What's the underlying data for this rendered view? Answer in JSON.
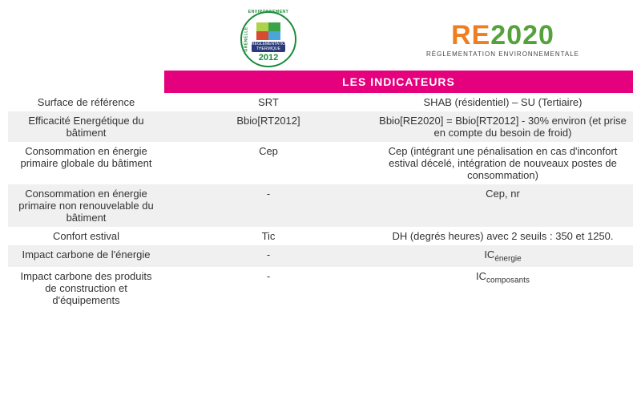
{
  "banner": "LES INDICATEURS",
  "logos": {
    "grenelle": {
      "top_text": "ENVIRONNEMENT",
      "left_text": "GRENELLE",
      "band_line1": "RÉGLEMENTATION",
      "band_line2": "THERMIQUE",
      "year": "2012"
    },
    "re2020": {
      "re": "RE",
      "year": "2020",
      "subtitle": "RÉGLEMENTATION ENVIRONNEMENTALE"
    }
  },
  "columns": {
    "label_width": 195,
    "rt2012_width": 260,
    "re2020_width": 325
  },
  "colors": {
    "banner_bg": "#e5007d",
    "banner_fg": "#ffffff",
    "row_even": "#f0f0f0",
    "row_odd": "#ffffff",
    "re_orange": "#f07d1f",
    "re_green": "#56a23a",
    "grenelle_green": "#1a8b3a"
  },
  "rows": [
    {
      "label": "Surface de référence",
      "rt2012": "SRT",
      "re2020": "SHAB (résidentiel) – SU (Tertiaire)"
    },
    {
      "label": "Efficacité Energétique du bâtiment",
      "rt2012": "Bbio[RT2012]",
      "re2020": "Bbio[RE2020] = Bbio[RT2012] - 30% environ (et prise en compte du besoin de froid)"
    },
    {
      "label": "Consommation en énergie primaire globale du bâtiment",
      "rt2012": "Cep",
      "re2020": "Cep (intégrant une pénalisation en cas d'inconfort estival décelé, intégration de nouveaux postes de consommation)"
    },
    {
      "label": "Consommation en énergie primaire non renouvelable du bâtiment",
      "rt2012": "-",
      "re2020": "Cep, nr"
    },
    {
      "label": "Confort estival",
      "rt2012": "Tic",
      "re2020": "DH (degrés heures) avec 2 seuils : 350 et 1250."
    },
    {
      "label": "Impact carbone de l'énergie",
      "rt2012": "-",
      "re2020_prefix": "IC",
      "re2020_sub": "énergie"
    },
    {
      "label": "Impact carbone des produits de construction et d'équipements",
      "rt2012": "-",
      "re2020_prefix": "IC",
      "re2020_sub": "composants"
    }
  ]
}
